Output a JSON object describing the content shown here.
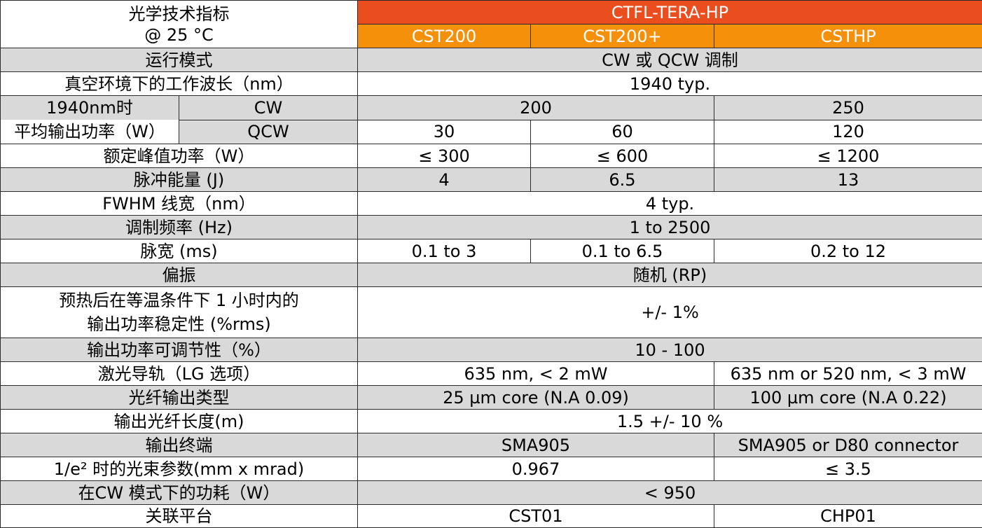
{
  "header": {
    "title_line1": "光学技术指标",
    "title_line2": "@ 25 °C",
    "product_family": "CTFL-TERA-HP",
    "models": [
      "CST200",
      "CST200+",
      "CSTHP"
    ]
  },
  "rows": {
    "operating_mode": {
      "label": "运行模式",
      "value": "CW 或 QCW 调制"
    },
    "wavelength": {
      "label": "真空环境下的工作波长（nm）",
      "value": "1940 typ."
    },
    "avg_power": {
      "label_line1": "1940nm时",
      "label_line2": "平均输出功率（W）",
      "cw_label": "CW",
      "cw_cst200": "200",
      "cw_csthp": "250",
      "qcw_label": "QCW",
      "qcw": [
        "30",
        "60",
        "120"
      ]
    },
    "peak_power": {
      "label": "额定峰值功率（W）",
      "values": [
        "≤ 300",
        "≤ 600",
        "≤ 1200"
      ]
    },
    "pulse_energy": {
      "label": "脉冲能量 (J)",
      "values": [
        "4",
        "6.5",
        "13"
      ]
    },
    "linewidth": {
      "label": "FWHM 线宽（nm）",
      "value": "4 typ."
    },
    "mod_freq": {
      "label": "调制频率 (Hz)",
      "value": "1 to 2500"
    },
    "pulse_width": {
      "label": "脉宽 (ms)",
      "values": [
        "0.1 to 3",
        "0.1 to 6.5",
        "0.2 to 12"
      ]
    },
    "polarization": {
      "label": "偏振",
      "value": "随机 (RP)"
    },
    "stability": {
      "label_line1": "预热后在等温条件下 1 小时内的",
      "label_line2": "输出功率稳定性 (%rms)",
      "value": "+/- 1%"
    },
    "adjustability": {
      "label": "输出功率可调节性（%）",
      "value": "10 - 100"
    },
    "guide_laser": {
      "label": "激光导轨（LG 选项）",
      "cst200": "635 nm, < 2 mW",
      "csthp": "635 nm or 520 nm, < 3 mW"
    },
    "fiber_type": {
      "label": "光纤输出类型",
      "cst200": "25 µm core (N.A 0.09)",
      "csthp": "100 µm core (N.A 0.22)"
    },
    "fiber_length": {
      "label": "输出光纤长度(m)",
      "value": "1.5 +/- 10 %"
    },
    "termination": {
      "label": "输出终端",
      "cst200": "SMA905",
      "csthp": "SMA905 or D80 connector"
    },
    "bpp": {
      "label": "1/e² 时的光束参数(mm x mrad)",
      "cst200": "0.967",
      "csthp": "≤ 3.5"
    },
    "power_consumption": {
      "label": "在CW 模式下的功耗（W）",
      "value": "< 950"
    },
    "platform": {
      "label": "关联平台",
      "cst200": "CST01",
      "csthp": "CHP01"
    }
  }
}
